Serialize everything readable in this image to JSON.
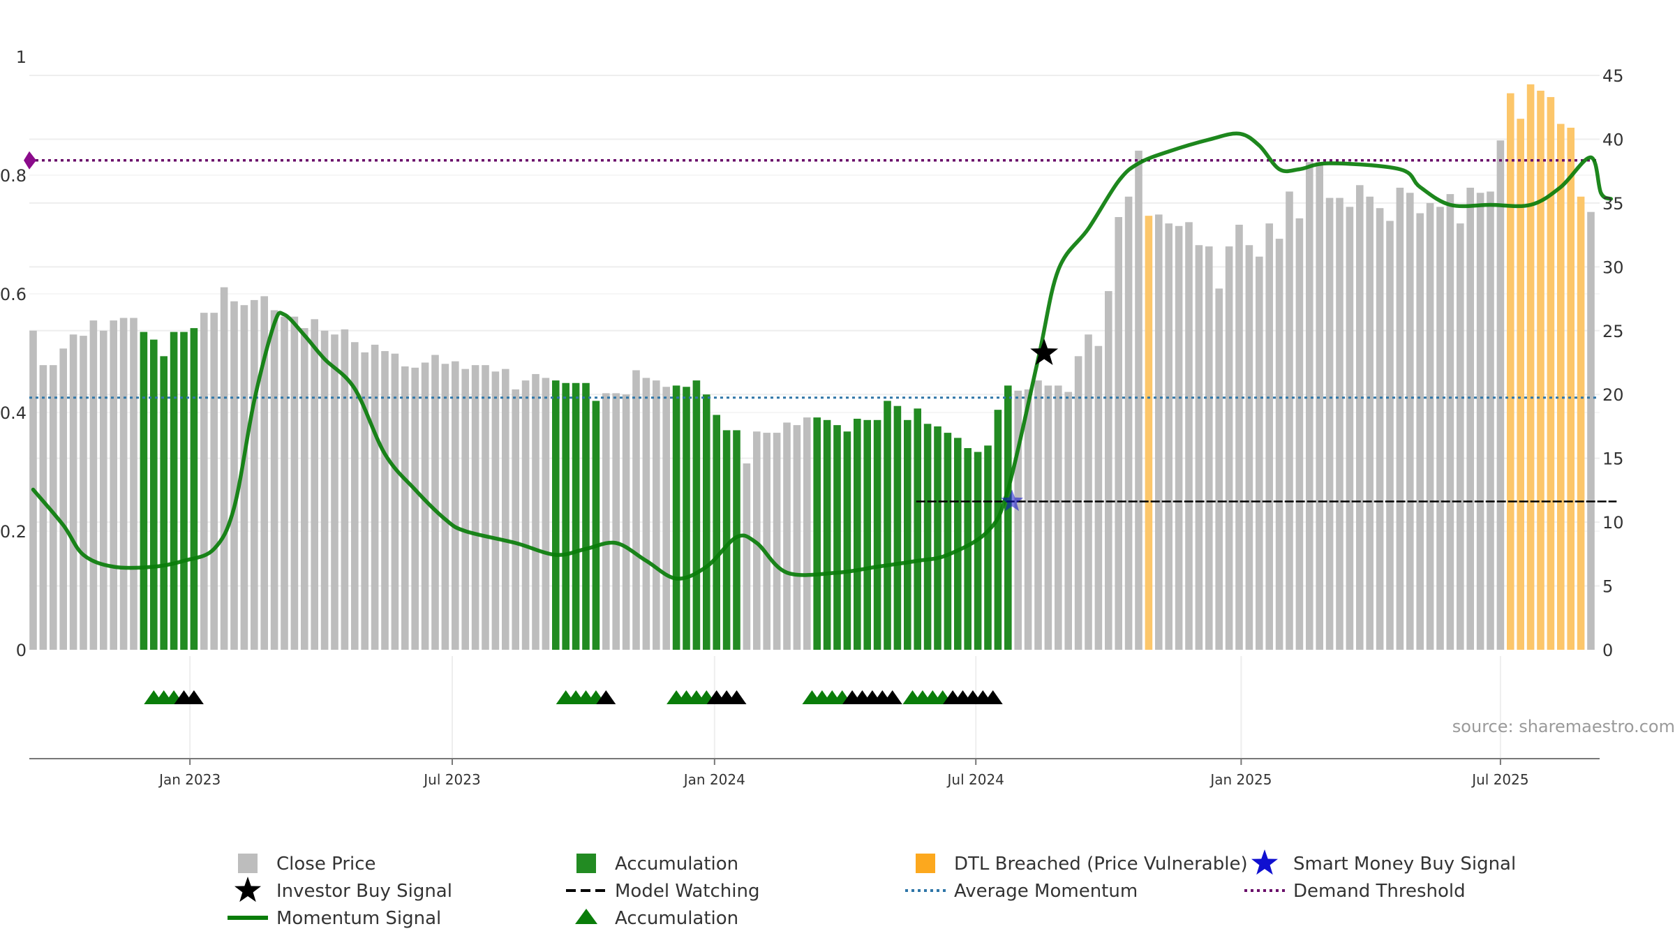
{
  "chart_data": {
    "type": "bar",
    "title": "",
    "source": "source: sharemaestro.com",
    "x_ticks": [
      "Jan 2023",
      "Jul 2023",
      "Jan 2024",
      "Jul 2024",
      "Jan 2025",
      "Jul 2025"
    ],
    "left_axis": {
      "ylim": [
        0,
        1
      ],
      "ticks": [
        "0",
        "0.2",
        "0.4",
        "0.6",
        "0.8",
        "1"
      ]
    },
    "right_axis": {
      "ylim": [
        0,
        45
      ],
      "ticks": [
        "0",
        "5",
        "10",
        "15",
        "20",
        "25",
        "30",
        "35",
        "40",
        "45"
      ]
    },
    "weeks_start": "2022-09-12",
    "close_price": [
      25,
      22.3,
      22.3,
      23.6,
      24.7,
      24.6,
      25.8,
      25,
      25.8,
      26,
      26,
      24.9,
      24.3,
      23,
      24.9,
      24.9,
      25.2,
      26.4,
      26.4,
      28.4,
      27.3,
      27,
      27.4,
      27.7,
      26.6,
      26.1,
      26.1,
      25.2,
      25.9,
      25,
      24.7,
      25.1,
      24.1,
      23.3,
      23.9,
      23.4,
      23.2,
      22.2,
      22.1,
      22.5,
      23.1,
      22.4,
      22.6,
      22,
      22.3,
      22.3,
      21.8,
      22,
      20.4,
      21.1,
      21.6,
      21.3,
      21.1,
      20.9,
      20.9,
      20.9,
      19.5,
      20.1,
      20.1,
      20,
      21.9,
      21.3,
      21.1,
      20.6,
      20.7,
      20.6,
      21.1,
      20,
      18.4,
      17.2,
      17.2,
      14.6,
      17.1,
      17,
      17,
      17.8,
      17.6,
      18.2,
      18.2,
      18,
      17.6,
      17.1,
      18.1,
      18,
      18,
      19.5,
      19.1,
      18,
      18.9,
      17.7,
      17.5,
      17,
      16.6,
      15.8,
      15.5,
      16,
      18.8,
      20.7,
      20.3,
      20.4,
      21.1,
      20.7,
      20.7,
      20.2,
      23,
      24.7,
      23.8,
      28.1,
      33.9,
      35.5,
      39.1,
      34,
      34.1,
      33.4,
      33.2,
      33.5,
      31.7,
      31.6,
      28.3,
      31.6,
      33.3,
      31.7,
      30.8,
      33.4,
      32.2,
      35.9,
      33.8,
      38.2,
      38.2,
      35.4,
      35.4,
      34.7,
      36.4,
      35.5,
      34.6,
      33.6,
      36.2,
      35.8,
      34.2,
      35,
      34.7,
      35.7,
      33.4,
      36.2,
      35.8,
      35.9,
      39.9,
      43.6,
      41.6,
      44.3,
      43.8,
      43.3,
      41.2,
      40.9,
      35.5,
      34.3
    ],
    "series": [
      {
        "name": "Close Price",
        "color": "#bdbdbd"
      },
      {
        "name": "Accumulation",
        "color": "#228b22",
        "week_ranges": [
          [
            11,
            16
          ],
          [
            52,
            56
          ],
          [
            64,
            70
          ],
          [
            78,
            90
          ],
          [
            88,
            97
          ]
        ]
      },
      {
        "name": "DTL Breached (Price Vulnerable)",
        "color": "#fcc66a",
        "week_ranges": [
          [
            111,
            111
          ],
          [
            147,
            154
          ]
        ]
      },
      {
        "name": "Momentum Signal",
        "color": "#0a7d0a",
        "points": [
          [
            0,
            0.27
          ],
          [
            3,
            0.21
          ],
          [
            5,
            0.16
          ],
          [
            8,
            0.14
          ],
          [
            12,
            0.14
          ],
          [
            15,
            0.15
          ],
          [
            18,
            0.17
          ],
          [
            20,
            0.24
          ],
          [
            22,
            0.42
          ],
          [
            24,
            0.55
          ],
          [
            25,
            0.565
          ],
          [
            27,
            0.53
          ],
          [
            29,
            0.49
          ],
          [
            32,
            0.44
          ],
          [
            35,
            0.33
          ],
          [
            38,
            0.27
          ],
          [
            41,
            0.22
          ],
          [
            43,
            0.2
          ],
          [
            48,
            0.18
          ],
          [
            52,
            0.16
          ],
          [
            55,
            0.17
          ],
          [
            58,
            0.18
          ],
          [
            61,
            0.15
          ],
          [
            64,
            0.12
          ],
          [
            67,
            0.14
          ],
          [
            70,
            0.19
          ],
          [
            72,
            0.18
          ],
          [
            75,
            0.13
          ],
          [
            80,
            0.13
          ],
          [
            84,
            0.14
          ],
          [
            88,
            0.15
          ],
          [
            91,
            0.16
          ],
          [
            95,
            0.2
          ],
          [
            97,
            0.27
          ],
          [
            100,
            0.49
          ],
          [
            102,
            0.64
          ],
          [
            105,
            0.71
          ],
          [
            108,
            0.79
          ],
          [
            110,
            0.82
          ],
          [
            113,
            0.84
          ],
          [
            117,
            0.86
          ],
          [
            120,
            0.87
          ],
          [
            122,
            0.85
          ],
          [
            124,
            0.81
          ],
          [
            126,
            0.81
          ],
          [
            129,
            0.82
          ],
          [
            136,
            0.81
          ],
          [
            138,
            0.78
          ],
          [
            141,
            0.75
          ],
          [
            145,
            0.75
          ],
          [
            149,
            0.75
          ],
          [
            152,
            0.78
          ],
          [
            155,
            0.83
          ],
          [
            156,
            0.77
          ],
          [
            157,
            0.76
          ]
        ]
      },
      {
        "name": "Average Momentum",
        "color": "#2f76a8",
        "value": 0.425
      },
      {
        "name": "Demand Threshold",
        "color": "#6a0d6a",
        "value": 0.825
      },
      {
        "name": "Model Watching",
        "color": "#000000",
        "start_week": 88,
        "end_week": 157,
        "value": 0.25
      },
      {
        "name": "Investor Buy Signal",
        "color": "#000000",
        "week": 100.6,
        "value": 0.5
      },
      {
        "name": "Smart Money Buy Signal",
        "color": "#1010d0",
        "week": 97.4,
        "value": 0.25
      }
    ],
    "accumulation_markers": [
      {
        "green": 3,
        "black": 2,
        "center_week": 14
      },
      {
        "green": 4,
        "black": 1,
        "center_week": 55
      },
      {
        "green": 4,
        "black": 3,
        "center_week": 67
      },
      {
        "green": 4,
        "black": 5,
        "center_week": 81.5
      },
      {
        "green": 4,
        "black": 5,
        "center_week": 91.5
      }
    ],
    "legend": [
      {
        "label": "Close Price",
        "kind": "square",
        "color": "#bdbdbd"
      },
      {
        "label": "Accumulation",
        "kind": "square",
        "color": "#228b22"
      },
      {
        "label": "DTL Breached (Price Vulnerable)",
        "kind": "square",
        "color": "#fca81e"
      },
      {
        "label": "Smart Money Buy Signal",
        "kind": "star",
        "color": "#1010d0"
      },
      {
        "label": "Investor Buy Signal",
        "kind": "star",
        "color": "#000000"
      },
      {
        "label": "Model Watching",
        "kind": "dash",
        "color": "#000000"
      },
      {
        "label": "Average Momentum",
        "kind": "dot",
        "color": "#2f76a8"
      },
      {
        "label": "Demand Threshold",
        "kind": "dot",
        "color": "#6a0d6a"
      },
      {
        "label": "Momentum Signal",
        "kind": "line",
        "color": "#0a7d0a"
      },
      {
        "label": "Accumulation",
        "kind": "triangle",
        "color": "#0a7d0a"
      }
    ]
  }
}
